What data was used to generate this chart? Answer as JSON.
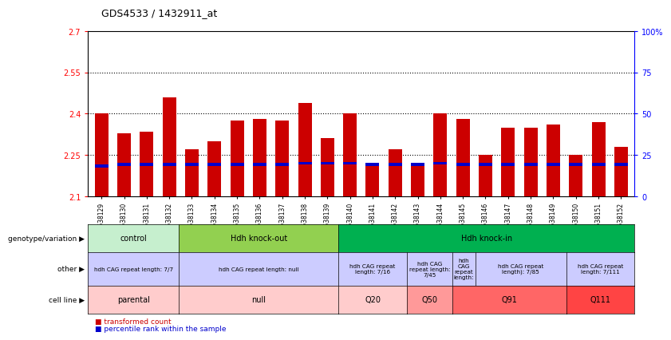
{
  "title": "GDS4533 / 1432911_at",
  "samples": [
    "GSM638129",
    "GSM638130",
    "GSM638131",
    "GSM638132",
    "GSM638133",
    "GSM638134",
    "GSM638135",
    "GSM638136",
    "GSM638137",
    "GSM638138",
    "GSM638139",
    "GSM638140",
    "GSM638141",
    "GSM638142",
    "GSM638143",
    "GSM638144",
    "GSM638145",
    "GSM638146",
    "GSM638147",
    "GSM638148",
    "GSM638149",
    "GSM638150",
    "GSM638151",
    "GSM638152"
  ],
  "bar_values": [
    2.4,
    2.33,
    2.335,
    2.46,
    2.27,
    2.3,
    2.375,
    2.38,
    2.375,
    2.44,
    2.31,
    2.4,
    2.22,
    2.27,
    2.22,
    2.4,
    2.38,
    2.25,
    2.35,
    2.35,
    2.36,
    2.25,
    2.37,
    2.28
  ],
  "blue_marker_values": [
    2.21,
    2.215,
    2.215,
    2.215,
    2.215,
    2.215,
    2.215,
    2.215,
    2.215,
    2.22,
    2.22,
    2.22,
    2.215,
    2.215,
    2.215,
    2.22,
    2.215,
    2.215,
    2.215,
    2.215,
    2.215,
    2.215,
    2.215,
    2.215
  ],
  "ymin": 2.1,
  "ymax": 2.7,
  "yticks": [
    2.1,
    2.25,
    2.4,
    2.55,
    2.7
  ],
  "ytick_labels": [
    "2.1",
    "2.25",
    "2.4",
    "2.55",
    "2.7"
  ],
  "right_ytick_labels": [
    "0",
    "25",
    "50",
    "75",
    "100%"
  ],
  "hlines": [
    2.25,
    2.4,
    2.55
  ],
  "bar_color": "#cc0000",
  "blue_color": "#0000cc",
  "bar_width": 0.6,
  "row_labels": [
    "genotype/variation",
    "other",
    "cell line"
  ],
  "groups": [
    {
      "label": "control",
      "start": 0,
      "end": 3,
      "color": "#c6efce"
    },
    {
      "label": "Hdh knock-out",
      "start": 4,
      "end": 10,
      "color": "#92d050"
    },
    {
      "label": "Hdh knock-in",
      "start": 11,
      "end": 23,
      "color": "#00b050"
    }
  ],
  "other_groups": [
    {
      "label": "hdh CAG repeat length: 7/7",
      "start": 0,
      "end": 3,
      "color": "#ccccff"
    },
    {
      "label": "hdh CAG repeat length: null",
      "start": 4,
      "end": 10,
      "color": "#ccccff"
    },
    {
      "label": "hdh CAG repeat\nlength: 7/16",
      "start": 11,
      "end": 13,
      "color": "#ccccff"
    },
    {
      "label": "hdh CAG\nrepeat length:\n7/45",
      "start": 14,
      "end": 15,
      "color": "#ccccff"
    },
    {
      "label": "hdh\nCAG\nrepeat\nlength:",
      "start": 16,
      "end": 16,
      "color": "#ccccff"
    },
    {
      "label": "hdh CAG repeat\nlength): 7/85",
      "start": 17,
      "end": 20,
      "color": "#ccccff"
    },
    {
      "label": "hdh CAG repeat\nlength: 7/111",
      "start": 21,
      "end": 23,
      "color": "#ccccff"
    }
  ],
  "cell_groups": [
    {
      "label": "parental",
      "start": 0,
      "end": 3,
      "color": "#ffcccc"
    },
    {
      "label": "null",
      "start": 4,
      "end": 10,
      "color": "#ffcccc"
    },
    {
      "label": "Q20",
      "start": 11,
      "end": 13,
      "color": "#ffcccc"
    },
    {
      "label": "Q50",
      "start": 14,
      "end": 15,
      "color": "#ff9999"
    },
    {
      "label": "Q91",
      "start": 16,
      "end": 20,
      "color": "#ff6666"
    },
    {
      "label": "Q111",
      "start": 21,
      "end": 23,
      "color": "#ff4444"
    }
  ]
}
